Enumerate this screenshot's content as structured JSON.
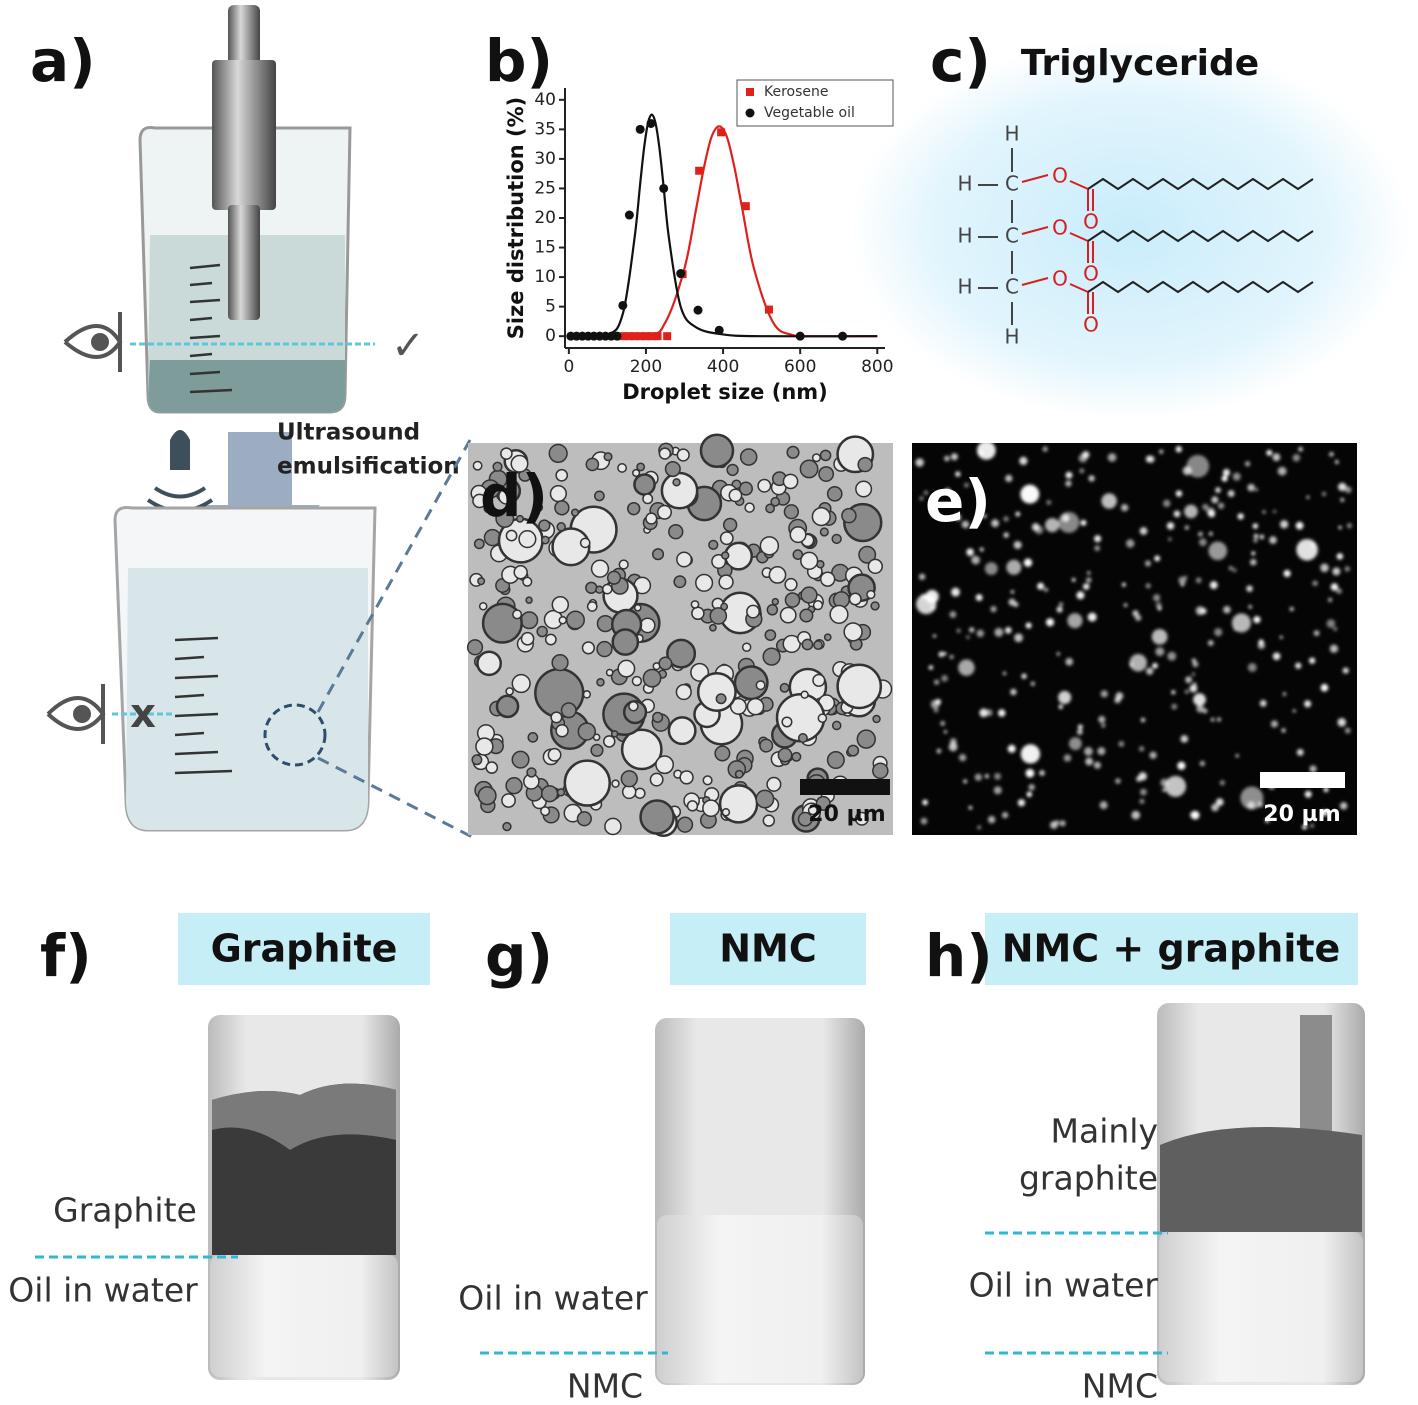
{
  "panel_labels": [
    "a)",
    "b)",
    "c)",
    "d)",
    "e)",
    "f)",
    "g)",
    "h)"
  ],
  "panel_a": {
    "arrow_label": [
      "Ultrasound",
      "emulsification"
    ],
    "clear_mark": "✓",
    "cloudy_mark": "x"
  },
  "chart_data": {
    "type": "scatter",
    "xlabel": "Droplet size (nm)",
    "ylabel": "Size distribution (%)",
    "xlim": [
      -10,
      820
    ],
    "ylim": [
      -2,
      42
    ],
    "xticks": [
      0,
      200,
      400,
      600,
      800
    ],
    "yticks": [
      0,
      5,
      10,
      15,
      20,
      25,
      30,
      35,
      40
    ],
    "legend": "top-right",
    "series": [
      {
        "name": "Kerosene",
        "color": "#e0201b",
        "marker": "square",
        "x": [
          140,
          155,
          170,
          185,
          200,
          215,
          230,
          255,
          295,
          338,
          395,
          459,
          519
        ],
        "values": [
          0,
          0,
          0,
          0,
          0,
          0,
          0,
          0,
          10.5,
          28,
          34.5,
          22,
          4.5
        ],
        "fit": {
          "x": [
            0,
            200,
            250,
            300,
            330,
            350,
            370,
            390,
            410,
            430,
            450,
            480,
            530,
            580,
            650,
            800
          ],
          "values": [
            0,
            0.2,
            2.3,
            11.5,
            21.5,
            28.4,
            33.7,
            35.5,
            33.7,
            28.4,
            21.5,
            11.5,
            2.3,
            0.2,
            0,
            0
          ]
        }
      },
      {
        "name": "Vegetable oil",
        "color": "#111111",
        "marker": "circle",
        "x": [
          5,
          20,
          35,
          50,
          65,
          80,
          95,
          110,
          125,
          140,
          157,
          185,
          213,
          246,
          290,
          335,
          390,
          600,
          710
        ],
        "values": [
          0,
          0,
          0,
          0,
          0,
          0,
          0,
          0,
          0,
          5.2,
          20.5,
          35,
          36,
          25,
          10.6,
          4.4,
          1,
          0,
          0
        ],
        "fit": {
          "x": [
            0,
            100,
            140,
            170,
            185,
            195,
            205,
            215,
            225,
            235,
            245,
            260,
            290,
            330,
            400,
            500,
            800
          ],
          "values": [
            0,
            0.2,
            3.8,
            16.4,
            25.8,
            31.8,
            36,
            37.5,
            36,
            31.8,
            25.8,
            16.4,
            5,
            1.5,
            0.3,
            0,
            0
          ]
        }
      }
    ]
  },
  "panel_c": {
    "title": "Triglyceride",
    "hydrogens": [
      "H",
      "H",
      "H",
      "H",
      "H"
    ],
    "carbons": [
      "C",
      "C",
      "C"
    ],
    "ester_oxygens": [
      "O",
      "O",
      "O"
    ],
    "carbonyl_oxygens": [
      "O",
      "O",
      "O"
    ]
  },
  "panel_d": {
    "scale_bar": "20 µm"
  },
  "panel_e": {
    "scale_bar": "20 µm"
  },
  "panel_f": {
    "title": "Graphite",
    "layers": [
      "Graphite",
      "Oil in water"
    ]
  },
  "panel_g": {
    "title": "NMC",
    "layers": [
      "Oil in water",
      "NMC"
    ]
  },
  "panel_h": {
    "title": "NMC + graphite",
    "layers": [
      "Mainly",
      "graphite",
      "Oil in water",
      "NMC"
    ]
  }
}
